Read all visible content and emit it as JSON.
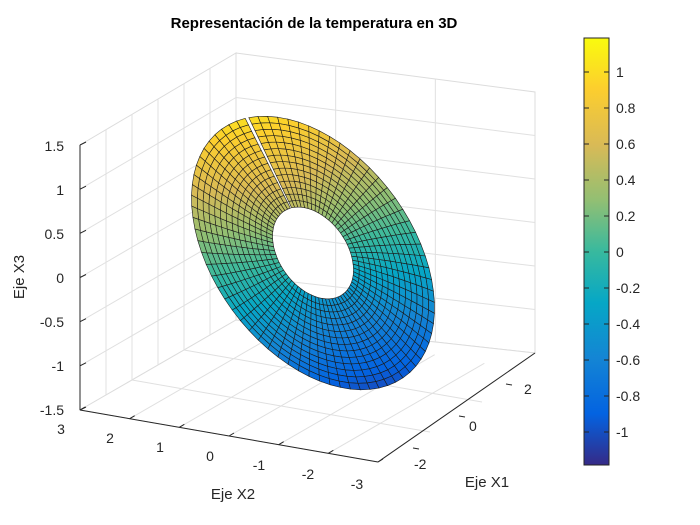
{
  "chart_data": {
    "type": "surface",
    "title": "Representación de la temperatura en 3D",
    "xlabel": "Eje X1",
    "ylabel": "Eje X2",
    "zlabel": "Eje X3",
    "x_ticks": [
      "-2",
      "0",
      "2"
    ],
    "y_ticks": [
      "3",
      "2",
      "1",
      "0",
      "-1",
      "-2",
      "-3"
    ],
    "z_ticks": [
      "1.5",
      "1",
      "0.5",
      "0",
      "-0.5",
      "-1",
      "-1.5"
    ],
    "xlim": [
      -3,
      3
    ],
    "ylim": [
      -3,
      3
    ],
    "zlim": [
      -1.5,
      1.5
    ],
    "grid": true,
    "colormap": "parula",
    "colorbar": {
      "range": [
        -1.18,
        1.18
      ],
      "ticks": [
        "1",
        "0.8",
        "0.6",
        "0.4",
        "0.2",
        "0",
        "-0.2",
        "-0.4",
        "-0.6",
        "-0.8",
        "-1"
      ]
    },
    "surface": {
      "shape": "tilted annulus",
      "inner_radius": 1,
      "outer_radius": 3,
      "color_value_range": [
        -1.18,
        1.18
      ]
    }
  }
}
